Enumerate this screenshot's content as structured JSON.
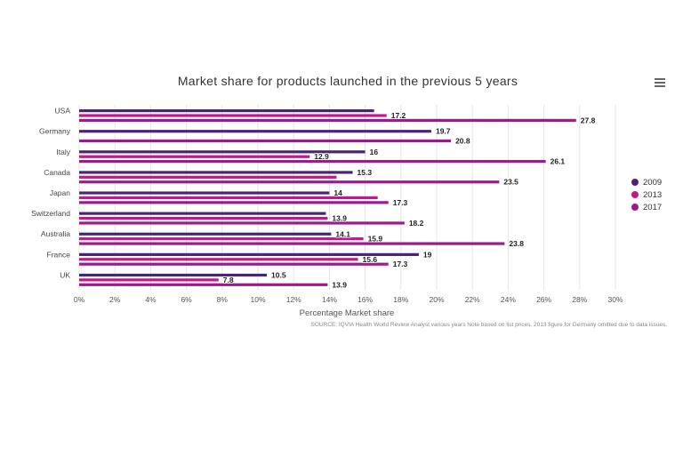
{
  "menu_icon": "hamburger-menu-icon",
  "chart_data": {
    "type": "bar",
    "orientation": "horizontal",
    "title": "Market share for products launched in the previous 5 years",
    "xlabel": "Percentage Market share",
    "ylabel": "",
    "categories": [
      "USA",
      "Germany",
      "Italy",
      "Canada",
      "Japan",
      "Switzerland",
      "Australia",
      "France",
      "UK"
    ],
    "series": [
      {
        "name": "2009",
        "color": "#4b2475",
        "values": [
          16.5,
          19.7,
          16,
          15.3,
          14,
          13.8,
          14.1,
          19,
          10.5
        ]
      },
      {
        "name": "2013",
        "color": "#c4168f",
        "values": [
          17.2,
          null,
          12.9,
          14.4,
          16.7,
          13.9,
          15.9,
          15.6,
          7.8
        ]
      },
      {
        "name": "2017",
        "color": "#9c1a8c",
        "values": [
          27.8,
          20.8,
          26.1,
          23.5,
          17.3,
          18.2,
          23.8,
          17.3,
          13.9
        ]
      }
    ],
    "data_labels": [
      [
        null,
        19.7,
        16,
        15.3,
        14,
        null,
        14.1,
        19,
        10.5
      ],
      [
        17.2,
        null,
        12.9,
        null,
        null,
        13.9,
        15.9,
        15.6,
        7.8
      ],
      [
        27.8,
        20.8,
        26.1,
        23.5,
        17.3,
        18.2,
        23.8,
        17.3,
        13.9
      ]
    ],
    "xlim": [
      0,
      30
    ],
    "xticks": [
      "0%",
      "2%",
      "4%",
      "6%",
      "8%",
      "10%",
      "12%",
      "14%",
      "16%",
      "18%",
      "20%",
      "22%",
      "24%",
      "26%",
      "28%",
      "30%"
    ],
    "grid": true,
    "legend_position": "right"
  },
  "source_note": "SOURCE: IQVIA Health World Review Analyst various years Note based on list prices. 2013 figure for Germany omitted due to data issues."
}
